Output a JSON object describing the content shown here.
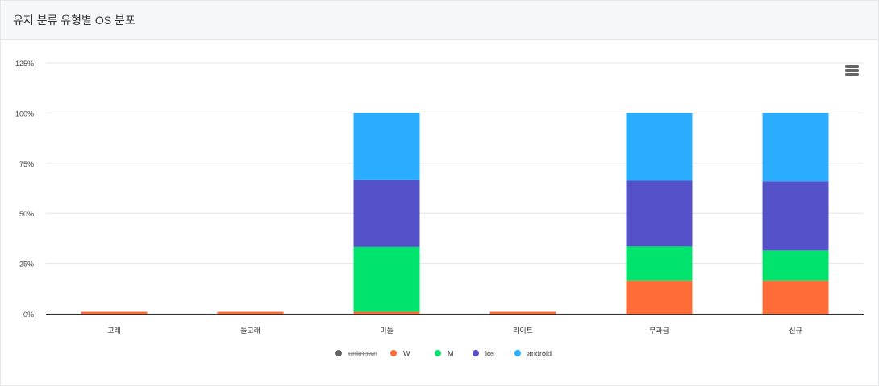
{
  "header": {
    "title": "유저 분류 유형별 OS 분포"
  },
  "chart_data": {
    "type": "bar",
    "stacked": true,
    "title": "",
    "xlabel": "",
    "ylabel": "",
    "ylim": [
      0,
      125
    ],
    "y_ticks": [
      "0%",
      "25%",
      "50%",
      "75%",
      "100%",
      "125%"
    ],
    "categories": [
      "고래",
      "돌고래",
      "미들",
      "라이트",
      "무과금",
      "신규"
    ],
    "series": [
      {
        "name": "unknown",
        "color": "#666666",
        "hidden": true,
        "values": [
          0,
          0,
          0,
          0,
          0,
          0
        ]
      },
      {
        "name": "W",
        "color": "#ff6c37",
        "values": [
          1,
          1,
          1,
          1,
          16.5,
          16.5
        ]
      },
      {
        "name": "M",
        "color": "#00e46e",
        "values": [
          0,
          0,
          32.3,
          0,
          17,
          15
        ]
      },
      {
        "name": "ios",
        "color": "#5551c8",
        "values": [
          0,
          0,
          33.3,
          0,
          32.8,
          34.5
        ]
      },
      {
        "name": "android",
        "color": "#2aadff",
        "values": [
          0,
          0,
          33.4,
          0,
          33.7,
          34
        ]
      }
    ],
    "grid": true,
    "legend_position": "bottom-center"
  },
  "menu": {
    "icon": "hamburger-menu-icon"
  }
}
